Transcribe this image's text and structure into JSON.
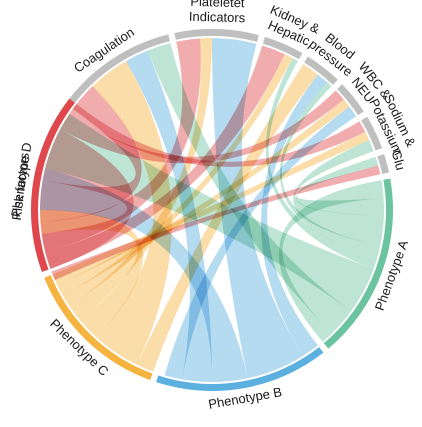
{
  "groups": [
    {
      "id": "risk",
      "label_lines": [
        "Risk factors"
      ],
      "color": "#bfbfbf",
      "start_deg": 250,
      "end_deg": 304
    },
    {
      "id": "coag",
      "label_lines": [
        "Coagulation"
      ],
      "color": "#bfbfbf",
      "start_deg": 306,
      "end_deg": 346
    },
    {
      "id": "plt",
      "label_lines": [
        "Plateletet",
        "Indicators"
      ],
      "color": "#bfbfbf",
      "start_deg": 348,
      "end_deg": 375
    },
    {
      "id": "kid",
      "label_lines": [
        "Kidney &",
        "Hepatic"
      ],
      "color": "#bfbfbf",
      "start_deg": 377,
      "end_deg": 390
    },
    {
      "id": "bp",
      "label_lines": [
        "Blood",
        "pressure"
      ],
      "color": "#bfbfbf",
      "start_deg": 392,
      "end_deg": 404
    },
    {
      "id": "wbc",
      "label_lines": [
        "WBC &",
        "NEU"
      ],
      "color": "#bfbfbf",
      "start_deg": 406,
      "end_deg": 417
    },
    {
      "id": "na",
      "label_lines": [
        "Sodium &",
        "Potassium"
      ],
      "color": "#bfbfbf",
      "start_deg": 419,
      "end_deg": 430
    },
    {
      "id": "glu",
      "label_lines": [
        "Glu"
      ],
      "color": "#bfbfbf",
      "start_deg": 432,
      "end_deg": 438
    },
    {
      "id": "A",
      "label_lines": [
        "Phenotype A"
      ],
      "color": "#6cc3a0",
      "start_deg": 440,
      "end_deg": 500
    },
    {
      "id": "B",
      "label_lines": [
        "Phenotype B"
      ],
      "color": "#5bb0e0",
      "start_deg": 502,
      "end_deg": 558
    },
    {
      "id": "C",
      "label_lines": [
        "Phenotype C"
      ],
      "color": "#f5b340",
      "start_deg": 560,
      "end_deg": 608
    },
    {
      "id": "D",
      "label_lines": [
        "Phenotype D"
      ],
      "color": "#e0474c",
      "start_deg": 610,
      "end_deg": 608
    }
  ],
  "ribbons": [
    {
      "from": "risk",
      "to": "D",
      "s0": 250,
      "s1": 262,
      "t0": 640,
      "t1": 658
    },
    {
      "from": "risk",
      "to": "C",
      "s0": 262,
      "s1": 270,
      "t0": 582,
      "t1": 590
    },
    {
      "from": "risk",
      "to": "B",
      "s0": 270,
      "s1": 284,
      "t0": 528,
      "t1": 540
    },
    {
      "from": "risk",
      "to": "A",
      "s0": 284,
      "s1": 304,
      "t0": 470,
      "t1": 486
    },
    {
      "from": "coag",
      "to": "D",
      "s0": 306,
      "s1": 316,
      "t0": 626,
      "t1": 640
    },
    {
      "from": "coag",
      "to": "C",
      "s0": 316,
      "s1": 330,
      "t0": 566,
      "t1": 582
    },
    {
      "from": "coag",
      "to": "B",
      "s0": 330,
      "s1": 338,
      "t0": 540,
      "t1": 550
    },
    {
      "from": "coag",
      "to": "A",
      "s0": 338,
      "s1": 346,
      "t0": 486,
      "t1": 496
    },
    {
      "from": "plt",
      "to": "D",
      "s0": 348,
      "s1": 356,
      "t0": 616,
      "t1": 626
    },
    {
      "from": "plt",
      "to": "C",
      "s0": 356,
      "s1": 360,
      "t0": 590,
      "t1": 596
    },
    {
      "from": "plt",
      "to": "B",
      "s0": 360,
      "s1": 375,
      "t0": 508,
      "t1": 528
    },
    {
      "from": "kid",
      "to": "D",
      "s0": 377,
      "s1": 385,
      "t0": 610,
      "t1": 616
    },
    {
      "from": "kid",
      "to": "C",
      "s0": 385,
      "s1": 388,
      "t0": 596,
      "t1": 600
    },
    {
      "from": "kid",
      "to": "A",
      "s0": 388,
      "s1": 390,
      "t0": 466,
      "t1": 470
    },
    {
      "from": "bp",
      "to": "C",
      "s0": 392,
      "s1": 398,
      "t0": 560,
      "t1": 566
    },
    {
      "from": "bp",
      "to": "B",
      "s0": 398,
      "s1": 402,
      "t0": 502,
      "t1": 508
    },
    {
      "from": "bp",
      "to": "A",
      "s0": 402,
      "s1": 404,
      "t0": 462,
      "t1": 466
    },
    {
      "from": "wbc",
      "to": "D",
      "s0": 406,
      "s1": 410,
      "t0": 658,
      "t1": 664
    },
    {
      "from": "wbc",
      "to": "C",
      "s0": 410,
      "s1": 413,
      "t0": 600,
      "t1": 604
    },
    {
      "from": "wbc",
      "to": "B",
      "s0": 413,
      "s1": 417,
      "t0": 550,
      "t1": 556
    },
    {
      "from": "na",
      "to": "D",
      "s0": 419,
      "s1": 423,
      "t0": 664,
      "t1": 668
    },
    {
      "from": "na",
      "to": "C",
      "s0": 423,
      "s1": 426,
      "t0": 604,
      "t1": 608
    },
    {
      "from": "na",
      "to": "A",
      "s0": 426,
      "s1": 430,
      "t0": 452,
      "t1": 462
    },
    {
      "from": "glu",
      "to": "A",
      "s0": 432,
      "s1": 435,
      "t0": 446,
      "t1": 452
    },
    {
      "from": "glu",
      "to": "D",
      "s0": 435,
      "s1": 438,
      "t0": 606,
      "t1": 609
    },
    {
      "from": "A",
      "to": "A",
      "s0": 440,
      "s1": 446,
      "t0": 496,
      "t1": 500
    }
  ]
}
